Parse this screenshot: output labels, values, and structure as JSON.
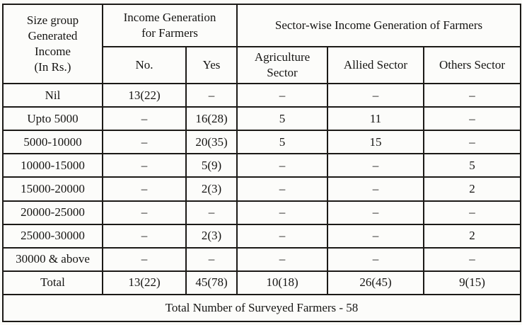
{
  "table": {
    "header": {
      "size_group": "Size group\nGenerated\nIncome\n(In Rs.)",
      "income_generation_group": "Income Generation\nfor Farmers",
      "sector_wise_group": "Sector-wise Income Generation of Farmers",
      "col_no": "No.",
      "col_yes": "Yes",
      "col_agriculture": "Agriculture\nSector",
      "col_allied": "Allied Sector",
      "col_others": "Others Sector"
    },
    "rows": [
      {
        "size_group": "Nil",
        "no": "13(22)",
        "yes": "–",
        "agriculture": "–",
        "allied": "–",
        "others": "–"
      },
      {
        "size_group": "Upto 5000",
        "no": "–",
        "yes": "16(28)",
        "agriculture": "5",
        "allied": "11",
        "others": "–"
      },
      {
        "size_group": "5000-10000",
        "no": "–",
        "yes": "20(35)",
        "agriculture": "5",
        "allied": "15",
        "others": "–"
      },
      {
        "size_group": "10000-15000",
        "no": "–",
        "yes": "5(9)",
        "agriculture": "–",
        "allied": "–",
        "others": "5"
      },
      {
        "size_group": "15000-20000",
        "no": "–",
        "yes": "2(3)",
        "agriculture": "–",
        "allied": "–",
        "others": "2"
      },
      {
        "size_group": "20000-25000",
        "no": "–",
        "yes": "–",
        "agriculture": "–",
        "allied": "–",
        "others": "–"
      },
      {
        "size_group": "25000-30000",
        "no": "–",
        "yes": "2(3)",
        "agriculture": "–",
        "allied": "–",
        "others": "2"
      },
      {
        "size_group": "30000 & above",
        "no": "–",
        "yes": "–",
        "agriculture": "–",
        "allied": "–",
        "others": "–"
      },
      {
        "size_group": "Total",
        "no": "13(22)",
        "yes": "45(78)",
        "agriculture": "10(18)",
        "allied": "26(45)",
        "others": "9(15)"
      }
    ],
    "footer_note": "Total Number of Surveyed Farmers - 58"
  },
  "colors": {
    "page_background": "#fbfbf8",
    "table_background": "#fcfcfa",
    "border": "#1c1a17",
    "text": "#151412"
  }
}
